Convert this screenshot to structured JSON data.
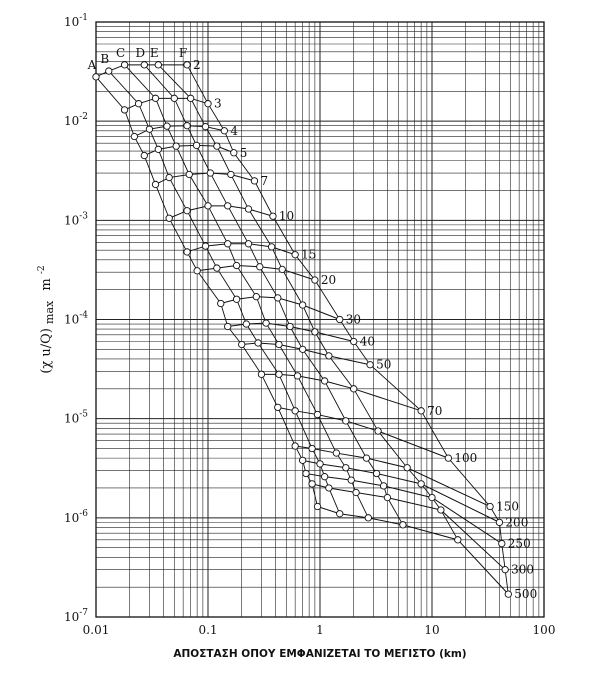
{
  "chart_data": {
    "type": "line",
    "title": "",
    "xlabel": "ΑΠΟΣΤΑΣΗ ΟΠΟΥ ΕΜΦΑΝΙΖΕΤΑΙ ΤΟ ΜΕΓΙΣΤΟ (km)",
    "ylabel_main": "(χ u/Q)",
    "ylabel_sub": "max",
    "ylabel_unit": "m",
    "ylabel_unit_exp": "-2",
    "x_scale": "log",
    "y_scale": "log",
    "xlim": [
      0.01,
      100
    ],
    "ylim": [
      1e-07,
      0.1
    ],
    "grid": true,
    "x_tick_labels": [
      {
        "value": 0.01,
        "label": "0.01"
      },
      {
        "value": 0.1,
        "label": "0.1"
      },
      {
        "value": 1,
        "label": "1"
      },
      {
        "value": 10,
        "label": "10"
      },
      {
        "value": 100,
        "label": "100"
      }
    ],
    "y_tick_labels": [
      {
        "value": 0.1,
        "base": "10",
        "exp": "-1"
      },
      {
        "value": 0.01,
        "base": "10",
        "exp": "-2"
      },
      {
        "value": 0.001,
        "base": "10",
        "exp": "-3"
      },
      {
        "value": 0.0001,
        "base": "10",
        "exp": "-4"
      },
      {
        "value": 1e-05,
        "base": "10",
        "exp": "-5"
      },
      {
        "value": 1e-06,
        "base": "10",
        "exp": "-6"
      },
      {
        "value": 1e-07,
        "base": "10",
        "exp": "-7"
      }
    ],
    "stability_classes": [
      "A",
      "B",
      "C",
      "D",
      "E",
      "F"
    ],
    "series": [
      {
        "name": "2",
        "x": [
          0.01,
          0.013,
          0.018,
          0.027,
          0.036,
          0.065
        ],
        "y": [
          0.028,
          0.032,
          0.037,
          0.037,
          0.037,
          0.037
        ]
      },
      {
        "name": "3",
        "x": [
          0.018,
          0.024,
          0.034,
          0.05,
          0.07,
          0.1
        ],
        "y": [
          0.013,
          0.015,
          0.017,
          0.017,
          0.017,
          0.015
        ]
      },
      {
        "name": "4",
        "x": [
          0.022,
          0.03,
          0.043,
          0.065,
          0.095,
          0.14
        ],
        "y": [
          0.007,
          0.0083,
          0.0089,
          0.009,
          0.0088,
          0.008
        ]
      },
      {
        "name": "5",
        "x": [
          0.027,
          0.036,
          0.052,
          0.079,
          0.12,
          0.17
        ],
        "y": [
          0.0045,
          0.0052,
          0.0056,
          0.0057,
          0.0056,
          0.0048
        ]
      },
      {
        "name": "7",
        "x": [
          0.034,
          0.045,
          0.068,
          0.105,
          0.16,
          0.26
        ],
        "y": [
          0.0023,
          0.0027,
          0.0029,
          0.003,
          0.0029,
          0.0025
        ]
      },
      {
        "name": "10",
        "x": [
          0.045,
          0.065,
          0.1,
          0.15,
          0.23,
          0.38
        ],
        "y": [
          0.00105,
          0.00125,
          0.0014,
          0.0014,
          0.0013,
          0.0011
        ]
      },
      {
        "name": "15",
        "x": [
          0.065,
          0.095,
          0.15,
          0.23,
          0.37,
          0.6
        ],
        "y": [
          0.00048,
          0.00055,
          0.00058,
          0.00058,
          0.00054,
          0.00045
        ]
      },
      {
        "name": "20",
        "x": [
          0.08,
          0.12,
          0.18,
          0.29,
          0.46,
          0.9
        ],
        "y": [
          0.00031,
          0.00033,
          0.00035,
          0.00034,
          0.00032,
          0.00025
        ]
      },
      {
        "name": "30",
        "x": [
          0.13,
          0.18,
          0.27,
          0.42,
          0.7,
          1.5
        ],
        "y": [
          0.000145,
          0.00016,
          0.00017,
          0.000165,
          0.00014,
          0.0001
        ]
      },
      {
        "name": "40",
        "x": [
          0.15,
          0.22,
          0.33,
          0.54,
          0.9,
          2.0
        ],
        "y": [
          8.5e-05,
          9e-05,
          9.2e-05,
          8.5e-05,
          7.5e-05,
          6e-05
        ]
      },
      {
        "name": "50",
        "x": [
          0.2,
          0.28,
          0.43,
          0.7,
          1.2,
          2.8
        ],
        "y": [
          5.6e-05,
          5.8e-05,
          5.6e-05,
          5e-05,
          4.3e-05,
          3.5e-05
        ]
      },
      {
        "name": "70",
        "x": [
          0.3,
          0.43,
          0.63,
          1.1,
          2.0,
          8.0
        ],
        "y": [
          2.8e-05,
          2.8e-05,
          2.7e-05,
          2.4e-05,
          2e-05,
          1.2e-05
        ]
      },
      {
        "name": "100",
        "x": [
          0.42,
          0.6,
          0.95,
          1.7,
          3.3,
          14.0
        ],
        "y": [
          1.3e-05,
          1.2e-05,
          1.1e-05,
          9.5e-06,
          7.5e-06,
          4e-06
        ]
      },
      {
        "name": "150",
        "x": [
          0.6,
          0.85,
          1.4,
          2.6,
          6.0,
          33.0
        ],
        "y": [
          5.3e-06,
          5e-06,
          4.5e-06,
          4e-06,
          3.2e-06,
          1.3e-06
        ]
      },
      {
        "name": "200",
        "x": [
          0.7,
          1.0,
          1.7,
          3.2,
          8.0,
          40.0
        ],
        "y": [
          3.8e-06,
          3.5e-06,
          3.2e-06,
          2.8e-06,
          2.2e-06,
          9e-07
        ]
      },
      {
        "name": "250",
        "x": [
          0.75,
          1.1,
          1.9,
          3.7,
          10.0,
          42.0
        ],
        "y": [
          2.8e-06,
          2.6e-06,
          2.4e-06,
          2.1e-06,
          1.6e-06,
          5.5e-07
        ]
      },
      {
        "name": "300",
        "x": [
          0.85,
          1.2,
          2.1,
          4.0,
          12.0,
          45.0
        ],
        "y": [
          2.2e-06,
          2e-06,
          1.8e-06,
          1.6e-06,
          1.2e-06,
          3e-07
        ]
      },
      {
        "name": "500",
        "x": [
          0.95,
          1.5,
          2.7,
          5.5,
          17.0,
          48.0
        ],
        "y": [
          1.3e-06,
          1.1e-06,
          1e-06,
          8.5e-07,
          6e-07,
          1.7e-07
        ]
      }
    ]
  }
}
